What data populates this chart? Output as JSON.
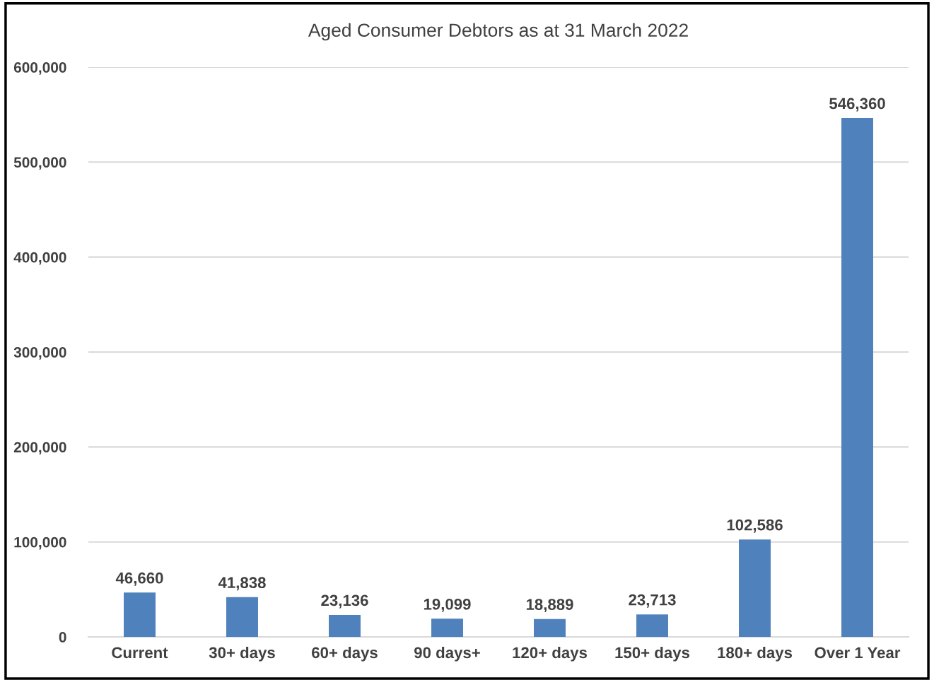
{
  "chart_data": {
    "type": "bar",
    "title": "Aged Consumer Debtors as at 31 March 2022",
    "categories": [
      "Current",
      "30+ days",
      "60+ days",
      "90 days+",
      "120+ days",
      "150+ days",
      "180+ days",
      "Over 1 Year"
    ],
    "values": [
      46660,
      41838,
      23136,
      19099,
      18889,
      23713,
      102586,
      546360
    ],
    "value_labels": [
      "46,660",
      "41,838",
      "23,136",
      "19,099",
      "18,889",
      "23,713",
      "102,586",
      "546,360"
    ],
    "color": "#4f81bd",
    "ylim": [
      0,
      600000
    ],
    "yticks": [
      0,
      {
        "value": 100000,
        "label": "100,000"
      },
      {
        "value": 200000,
        "label": "200,000"
      },
      {
        "value": 300000,
        "label": "300,000"
      },
      {
        "value": 400000,
        "label": "400,000"
      },
      {
        "value": 500000,
        "label": "500,000"
      },
      {
        "value": 600000,
        "label": "600,000"
      }
    ],
    "grid": "y"
  }
}
